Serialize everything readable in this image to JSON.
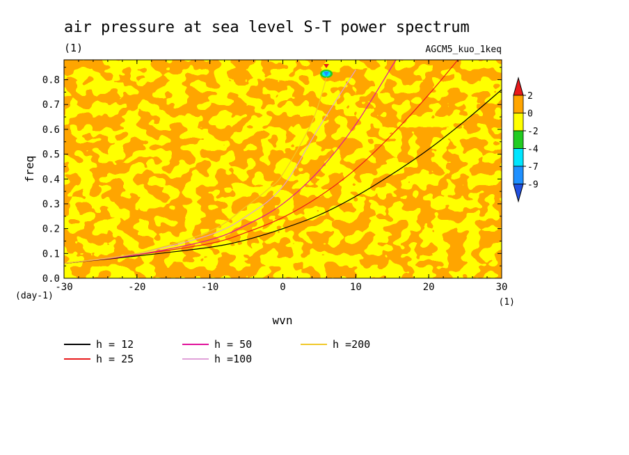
{
  "chart_data": {
    "type": "heatmap",
    "title": "air pressure at sea level S-T power spectrum",
    "units_label": "(1)",
    "run_label": "AGCM5_kuo_1keq",
    "xlabel": "wvn",
    "ylabel": "freq",
    "x_unit": "(1)",
    "y_unit": "(day-1)",
    "xlim": [
      -30,
      30
    ],
    "ylim": [
      0,
      0.88
    ],
    "x_ticks": [
      "-30",
      "-20",
      "-10",
      "0",
      "10",
      "20",
      "30"
    ],
    "y_ticks": [
      "0.0",
      "0.1",
      "0.2",
      "0.3",
      "0.4",
      "0.5",
      "0.6",
      "0.7",
      "0.8"
    ],
    "field_description": "mottled field alternating between 0 to 2 (orange) and -2 to 0 (yellow); single local extreme near wvn 6, freq 0.83",
    "colorbar": {
      "labels": [
        "2",
        "0",
        "-2",
        "-4",
        "-7",
        "-9"
      ],
      "colors": [
        "#e8191b",
        "#ffa500",
        "#ffff00",
        "#22cc22",
        "#00e5ff",
        "#1e90ff",
        "#2050e0"
      ]
    },
    "dispersion_curves": [
      {
        "name": "h = 12",
        "color": "#000000",
        "x": [
          -30,
          -20,
          -10,
          -5,
          0,
          5,
          10,
          15,
          20,
          25,
          30
        ],
        "y": [
          0.06,
          0.09,
          0.125,
          0.155,
          0.2,
          0.255,
          0.33,
          0.42,
          0.52,
          0.635,
          0.76
        ]
      },
      {
        "name": "h = 25",
        "color": "#e8191b",
        "x": [
          -30,
          -20,
          -10,
          -5,
          0,
          5,
          10,
          15,
          20,
          24
        ],
        "y": [
          0.06,
          0.095,
          0.14,
          0.185,
          0.245,
          0.33,
          0.44,
          0.58,
          0.74,
          0.88
        ]
      },
      {
        "name": "h = 50",
        "color": "#e0109a",
        "x": [
          -30,
          -20,
          -10,
          -5,
          0,
          5,
          10,
          15.5
        ],
        "y": [
          0.06,
          0.095,
          0.155,
          0.215,
          0.3,
          0.435,
          0.62,
          0.88
        ]
      },
      {
        "name": "h =100",
        "color": "#e0a0d8",
        "x": [
          -30,
          -20,
          -10,
          -5,
          0,
          5,
          10
        ],
        "y": [
          0.06,
          0.1,
          0.175,
          0.25,
          0.37,
          0.61,
          0.84
        ]
      },
      {
        "name": "h =200",
        "color": "#f0c828",
        "x": [
          -30,
          -20,
          -10,
          -5,
          -2,
          0,
          4,
          6
        ],
        "y": [
          0.06,
          0.1,
          0.19,
          0.29,
          0.36,
          0.42,
          0.63,
          0.81
        ]
      }
    ]
  }
}
